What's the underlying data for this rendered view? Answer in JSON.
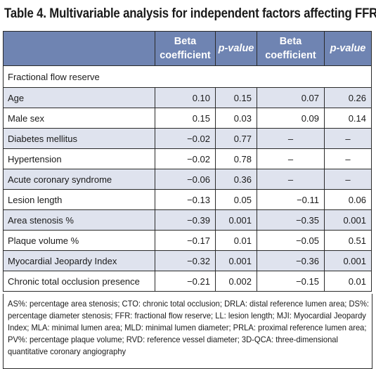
{
  "title": "Table 4. Multivariable analysis for independent factors affecting FFR.",
  "header": {
    "beta1_line1": "Beta",
    "beta1_line2": "coefficient",
    "p1": "p-value",
    "beta2_line1": "Beta",
    "beta2_line2": "coefficient",
    "p2": "p-value"
  },
  "section_label": "Fractional flow reserve",
  "rows": [
    {
      "label": "Age",
      "beta1": "0.10",
      "p1": "0.15",
      "beta2": "0.07",
      "p2": "0.26"
    },
    {
      "label": "Male sex",
      "beta1": "0.15",
      "p1": "0.03",
      "beta2": "0.09",
      "p2": "0.14"
    },
    {
      "label": "Diabetes mellitus",
      "beta1": "−0.02",
      "p1": "0.77",
      "beta2": "–",
      "p2": "–"
    },
    {
      "label": "Hypertension",
      "beta1": "−0.02",
      "p1": "0.78",
      "beta2": "–",
      "p2": "–"
    },
    {
      "label": "Acute coronary syndrome",
      "beta1": "−0.06",
      "p1": "0.36",
      "beta2": "–",
      "p2": "–"
    },
    {
      "label": "Lesion length",
      "beta1": "−0.13",
      "p1": "0.05",
      "beta2": "−0.11",
      "p2": "0.06"
    },
    {
      "label": "Area stenosis %",
      "beta1": "−0.39",
      "p1": "0.001",
      "beta2": "−0.35",
      "p2": "0.001"
    },
    {
      "label": "Plaque volume %",
      "beta1": "−0.17",
      "p1": "0.01",
      "beta2": "−0.05",
      "p2": "0.51"
    },
    {
      "label": "Myocardial Jeopardy Index",
      "beta1": "−0.32",
      "p1": "0.001",
      "beta2": "−0.36",
      "p2": "0.001"
    },
    {
      "label": "Chronic total occlusion presence",
      "beta1": "−0.21",
      "p1": "0.002",
      "beta2": "−0.15",
      "p2": "0.01"
    }
  ],
  "footnote": "AS%: percentage area stenosis; CTO: chronic total occlusion; DRLA: distal reference lumen area; DS%: percentage diameter stenosis; FFR: fractional flow reserve; LL: lesion length; MJI: Myocardial Jeopardy Index; MLA: minimal lumen area; MLD: minimal lumen diameter; PRLA: proximal reference lumen area; PV%: percentage plaque volume; RVD: reference vessel diameter; 3D-QCA: three-dimensional quantitative coronary angiography",
  "colors": {
    "header_bg": "#6f84b2",
    "shaded_row_bg": "#dfe3ee",
    "border": "#2a2a2a"
  }
}
